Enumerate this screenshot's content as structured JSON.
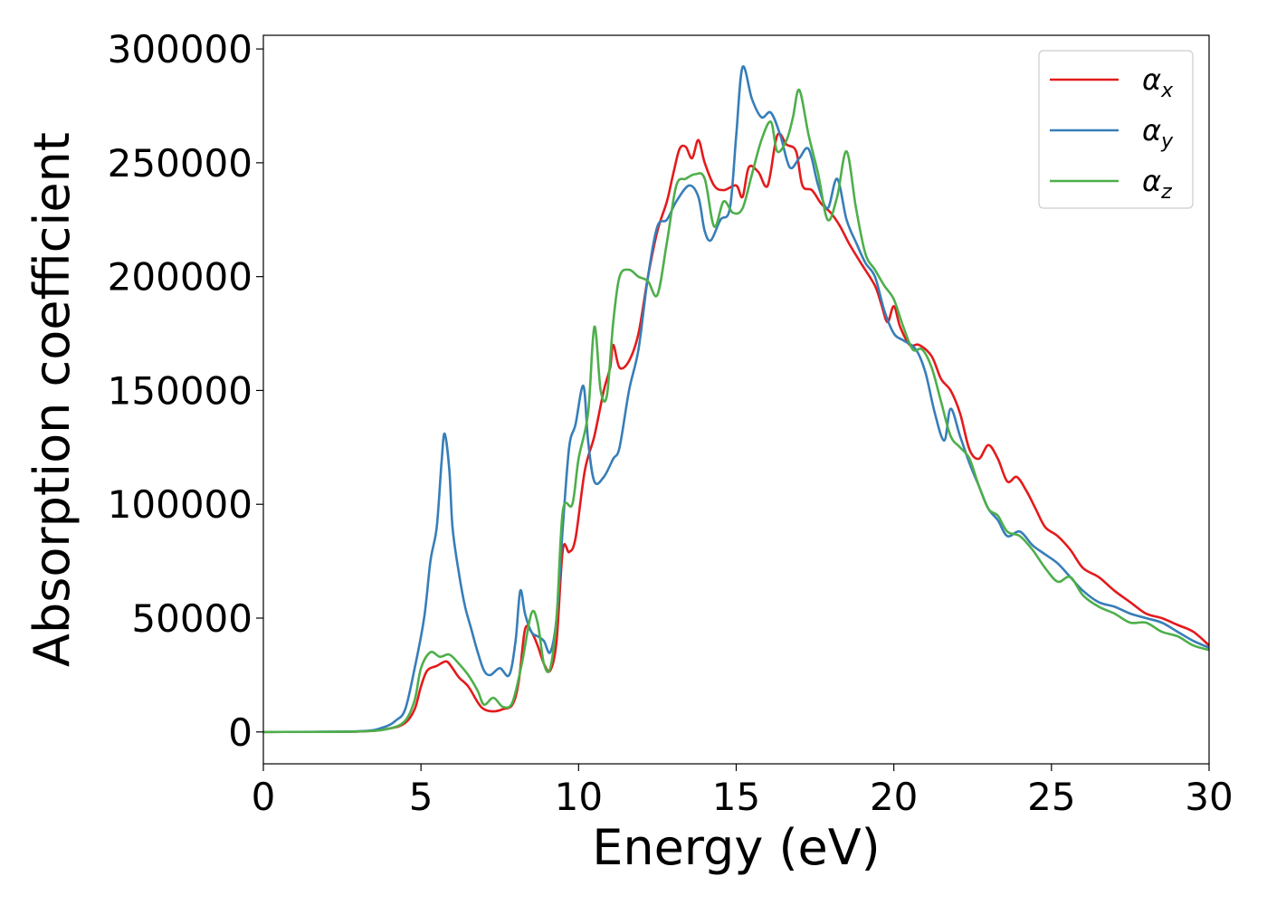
{
  "chart_data": {
    "type": "line",
    "title": "",
    "xlabel": "Energy (eV)",
    "ylabel": "Absorption coefficient",
    "xlim": [
      0,
      30
    ],
    "ylim": [
      -14000,
      306000
    ],
    "xticks": [
      0,
      5,
      10,
      15,
      20,
      25,
      30
    ],
    "yticks": [
      0,
      50000,
      100000,
      150000,
      200000,
      250000,
      300000
    ],
    "xtick_labels": [
      "0",
      "5",
      "10",
      "15",
      "20",
      "25",
      "30"
    ],
    "ytick_labels": [
      "0",
      "50000",
      "100000",
      "150000",
      "200000",
      "250000",
      "300000"
    ],
    "grid": false,
    "legend_position": "top-right",
    "series": [
      {
        "name": "α",
        "subscript": "x",
        "color": "#e41a1c",
        "points": [
          [
            0,
            0
          ],
          [
            3,
            200
          ],
          [
            4,
            1500
          ],
          [
            4.5,
            4000
          ],
          [
            4.8,
            10000
          ],
          [
            5.0,
            20000
          ],
          [
            5.2,
            27000
          ],
          [
            5.5,
            29000
          ],
          [
            5.8,
            31000
          ],
          [
            6.0,
            28000
          ],
          [
            6.2,
            24000
          ],
          [
            6.5,
            20000
          ],
          [
            6.8,
            13000
          ],
          [
            7.0,
            10000
          ],
          [
            7.3,
            9000
          ],
          [
            7.6,
            10000
          ],
          [
            7.9,
            12000
          ],
          [
            8.1,
            22000
          ],
          [
            8.3,
            45000
          ],
          [
            8.5,
            44000
          ],
          [
            8.7,
            38000
          ],
          [
            8.9,
            30000
          ],
          [
            9.1,
            27000
          ],
          [
            9.3,
            40000
          ],
          [
            9.5,
            80000
          ],
          [
            9.7,
            79000
          ],
          [
            9.9,
            85000
          ],
          [
            10.2,
            115000
          ],
          [
            10.5,
            130000
          ],
          [
            10.8,
            150000
          ],
          [
            11.0,
            160000
          ],
          [
            11.1,
            170000
          ],
          [
            11.3,
            160000
          ],
          [
            11.6,
            163000
          ],
          [
            11.9,
            175000
          ],
          [
            12.2,
            200000
          ],
          [
            12.5,
            220000
          ],
          [
            12.8,
            233000
          ],
          [
            13.0,
            245000
          ],
          [
            13.2,
            256000
          ],
          [
            13.4,
            257000
          ],
          [
            13.6,
            252000
          ],
          [
            13.8,
            260000
          ],
          [
            14.0,
            250000
          ],
          [
            14.3,
            240000
          ],
          [
            14.6,
            238000
          ],
          [
            15.0,
            240000
          ],
          [
            15.2,
            235000
          ],
          [
            15.4,
            248000
          ],
          [
            15.7,
            246000
          ],
          [
            16.0,
            240000
          ],
          [
            16.3,
            262000
          ],
          [
            16.6,
            258000
          ],
          [
            16.9,
            255000
          ],
          [
            17.1,
            240000
          ],
          [
            17.4,
            238000
          ],
          [
            17.7,
            232000
          ],
          [
            18.0,
            228000
          ],
          [
            18.3,
            222000
          ],
          [
            18.6,
            214000
          ],
          [
            19.0,
            205000
          ],
          [
            19.4,
            196000
          ],
          [
            19.6,
            188000
          ],
          [
            19.8,
            180000
          ],
          [
            20.0,
            187000
          ],
          [
            20.2,
            178000
          ],
          [
            20.5,
            170000
          ],
          [
            20.8,
            170000
          ],
          [
            21.2,
            165000
          ],
          [
            21.5,
            155000
          ],
          [
            21.8,
            150000
          ],
          [
            22.1,
            140000
          ],
          [
            22.4,
            124000
          ],
          [
            22.7,
            120000
          ],
          [
            23.0,
            126000
          ],
          [
            23.3,
            120000
          ],
          [
            23.6,
            110000
          ],
          [
            23.9,
            112000
          ],
          [
            24.2,
            106000
          ],
          [
            24.5,
            98000
          ],
          [
            24.8,
            90000
          ],
          [
            25.2,
            86000
          ],
          [
            25.6,
            80000
          ],
          [
            26.0,
            72000
          ],
          [
            26.5,
            68000
          ],
          [
            27.0,
            62000
          ],
          [
            27.5,
            57000
          ],
          [
            28.0,
            52000
          ],
          [
            28.5,
            50000
          ],
          [
            29.0,
            47000
          ],
          [
            29.5,
            44000
          ],
          [
            30,
            38000
          ]
        ]
      },
      {
        "name": "α",
        "subscript": "y",
        "color": "#377eb8",
        "points": [
          [
            0,
            0
          ],
          [
            3,
            300
          ],
          [
            3.8,
            2000
          ],
          [
            4.2,
            5000
          ],
          [
            4.5,
            10000
          ],
          [
            4.8,
            28000
          ],
          [
            5.1,
            50000
          ],
          [
            5.3,
            75000
          ],
          [
            5.5,
            90000
          ],
          [
            5.65,
            118000
          ],
          [
            5.75,
            131000
          ],
          [
            5.9,
            115000
          ],
          [
            6.0,
            90000
          ],
          [
            6.2,
            70000
          ],
          [
            6.4,
            55000
          ],
          [
            6.6,
            45000
          ],
          [
            6.8,
            35000
          ],
          [
            7.0,
            27000
          ],
          [
            7.2,
            25000
          ],
          [
            7.5,
            28000
          ],
          [
            7.8,
            25000
          ],
          [
            8.0,
            40000
          ],
          [
            8.15,
            62000
          ],
          [
            8.3,
            52000
          ],
          [
            8.5,
            44000
          ],
          [
            8.7,
            42000
          ],
          [
            8.9,
            40000
          ],
          [
            9.1,
            35000
          ],
          [
            9.3,
            50000
          ],
          [
            9.5,
            90000
          ],
          [
            9.7,
            125000
          ],
          [
            9.9,
            135000
          ],
          [
            10.15,
            152000
          ],
          [
            10.3,
            128000
          ],
          [
            10.5,
            110000
          ],
          [
            10.8,
            112000
          ],
          [
            11.1,
            120000
          ],
          [
            11.3,
            125000
          ],
          [
            11.6,
            150000
          ],
          [
            11.9,
            168000
          ],
          [
            12.2,
            200000
          ],
          [
            12.5,
            222000
          ],
          [
            12.8,
            225000
          ],
          [
            13.1,
            233000
          ],
          [
            13.5,
            240000
          ],
          [
            13.8,
            235000
          ],
          [
            14.0,
            220000
          ],
          [
            14.2,
            216000
          ],
          [
            14.5,
            225000
          ],
          [
            14.8,
            230000
          ],
          [
            15.0,
            262000
          ],
          [
            15.2,
            292000
          ],
          [
            15.5,
            278000
          ],
          [
            15.8,
            270000
          ],
          [
            16.1,
            272000
          ],
          [
            16.4,
            262000
          ],
          [
            16.7,
            248000
          ],
          [
            17.0,
            252000
          ],
          [
            17.3,
            256000
          ],
          [
            17.6,
            240000
          ],
          [
            17.9,
            230000
          ],
          [
            18.2,
            243000
          ],
          [
            18.5,
            225000
          ],
          [
            18.8,
            215000
          ],
          [
            19.1,
            206000
          ],
          [
            19.4,
            200000
          ],
          [
            19.7,
            185000
          ],
          [
            20.0,
            175000
          ],
          [
            20.3,
            172000
          ],
          [
            20.7,
            168000
          ],
          [
            21.0,
            158000
          ],
          [
            21.3,
            140000
          ],
          [
            21.6,
            128000
          ],
          [
            21.8,
            142000
          ],
          [
            22.1,
            130000
          ],
          [
            22.4,
            118000
          ],
          [
            22.7,
            108000
          ],
          [
            23.0,
            98000
          ],
          [
            23.3,
            93000
          ],
          [
            23.6,
            86000
          ],
          [
            24.0,
            88000
          ],
          [
            24.4,
            82000
          ],
          [
            24.8,
            78000
          ],
          [
            25.2,
            74000
          ],
          [
            25.6,
            68000
          ],
          [
            26.0,
            62000
          ],
          [
            26.5,
            57000
          ],
          [
            27.0,
            55000
          ],
          [
            27.5,
            52000
          ],
          [
            28.0,
            50000
          ],
          [
            28.5,
            48000
          ],
          [
            29.0,
            44000
          ],
          [
            29.5,
            40000
          ],
          [
            30,
            37000
          ]
        ]
      },
      {
        "name": "α",
        "subscript": "z",
        "color": "#4daf4a",
        "points": [
          [
            0,
            0
          ],
          [
            3,
            200
          ],
          [
            4,
            1500
          ],
          [
            4.5,
            5000
          ],
          [
            4.8,
            14000
          ],
          [
            5.0,
            28000
          ],
          [
            5.3,
            35000
          ],
          [
            5.6,
            33000
          ],
          [
            5.9,
            34000
          ],
          [
            6.2,
            30000
          ],
          [
            6.5,
            25000
          ],
          [
            6.8,
            18000
          ],
          [
            7.0,
            12000
          ],
          [
            7.3,
            15000
          ],
          [
            7.6,
            11000
          ],
          [
            7.9,
            13000
          ],
          [
            8.2,
            30000
          ],
          [
            8.5,
            52000
          ],
          [
            8.7,
            48000
          ],
          [
            8.9,
            30000
          ],
          [
            9.1,
            28000
          ],
          [
            9.3,
            50000
          ],
          [
            9.5,
            97000
          ],
          [
            9.8,
            100000
          ],
          [
            10.0,
            120000
          ],
          [
            10.3,
            140000
          ],
          [
            10.5,
            178000
          ],
          [
            10.7,
            150000
          ],
          [
            10.9,
            148000
          ],
          [
            11.1,
            180000
          ],
          [
            11.3,
            200000
          ],
          [
            11.6,
            203000
          ],
          [
            11.9,
            200000
          ],
          [
            12.2,
            198000
          ],
          [
            12.5,
            192000
          ],
          [
            12.8,
            215000
          ],
          [
            13.1,
            240000
          ],
          [
            13.4,
            243000
          ],
          [
            13.7,
            245000
          ],
          [
            14.0,
            243000
          ],
          [
            14.3,
            222000
          ],
          [
            14.6,
            233000
          ],
          [
            14.9,
            228000
          ],
          [
            15.2,
            230000
          ],
          [
            15.5,
            245000
          ],
          [
            15.8,
            260000
          ],
          [
            16.1,
            268000
          ],
          [
            16.3,
            255000
          ],
          [
            16.6,
            260000
          ],
          [
            16.8,
            270000
          ],
          [
            17.0,
            282000
          ],
          [
            17.3,
            262000
          ],
          [
            17.6,
            245000
          ],
          [
            17.9,
            225000
          ],
          [
            18.2,
            235000
          ],
          [
            18.5,
            255000
          ],
          [
            18.8,
            230000
          ],
          [
            19.1,
            210000
          ],
          [
            19.4,
            203000
          ],
          [
            19.7,
            196000
          ],
          [
            20.0,
            190000
          ],
          [
            20.3,
            178000
          ],
          [
            20.6,
            168000
          ],
          [
            20.9,
            168000
          ],
          [
            21.2,
            160000
          ],
          [
            21.5,
            145000
          ],
          [
            21.8,
            130000
          ],
          [
            22.1,
            125000
          ],
          [
            22.4,
            120000
          ],
          [
            22.7,
            108000
          ],
          [
            23.0,
            98000
          ],
          [
            23.3,
            95000
          ],
          [
            23.6,
            88000
          ],
          [
            24.0,
            86000
          ],
          [
            24.4,
            80000
          ],
          [
            24.8,
            72000
          ],
          [
            25.2,
            66000
          ],
          [
            25.6,
            68000
          ],
          [
            26.0,
            60000
          ],
          [
            26.5,
            55000
          ],
          [
            27.0,
            52000
          ],
          [
            27.5,
            48000
          ],
          [
            28.0,
            48000
          ],
          [
            28.5,
            44000
          ],
          [
            29.0,
            42000
          ],
          [
            29.5,
            38000
          ],
          [
            30,
            36000
          ]
        ]
      }
    ]
  }
}
